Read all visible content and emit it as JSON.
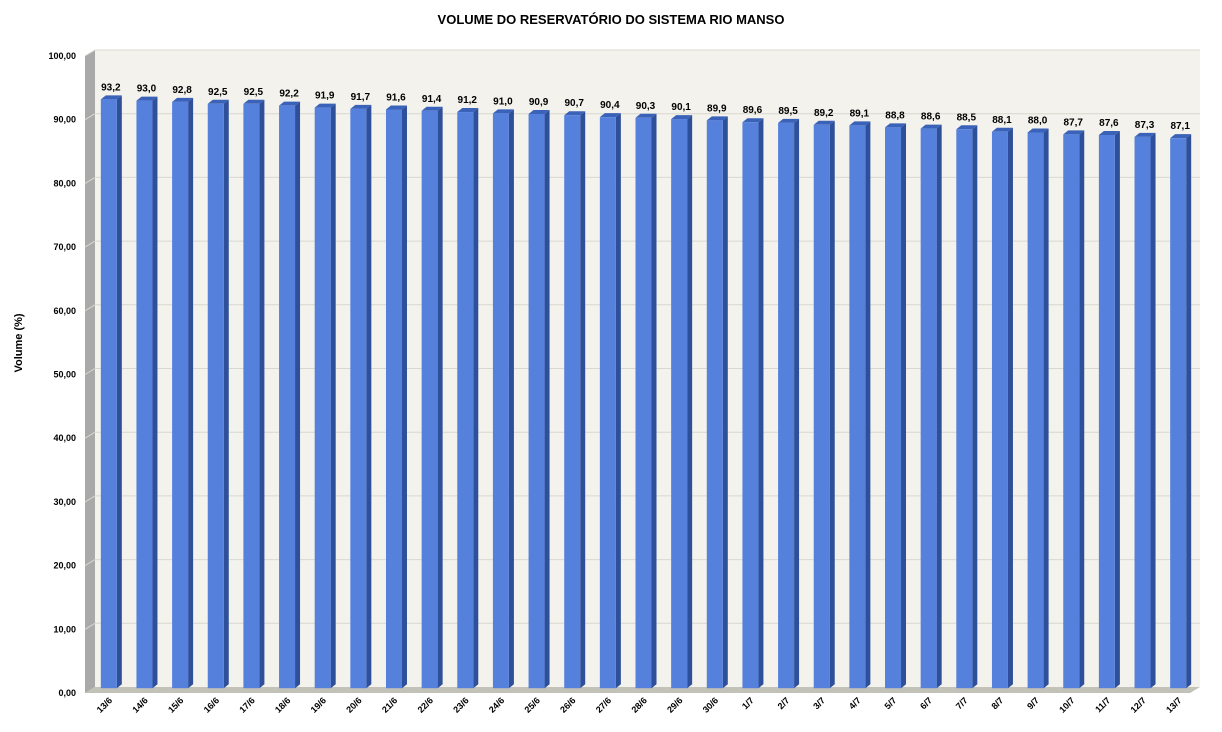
{
  "chart_data": {
    "type": "bar",
    "title": "VOLUME DO RESERVATÓRIO DO SISTEMA RIO MANSO",
    "xlabel": "",
    "ylabel": "Volume (%)",
    "ylim": [
      0,
      100
    ],
    "yticks": [
      0,
      10,
      20,
      30,
      40,
      50,
      60,
      70,
      80,
      90,
      100
    ],
    "ytick_labels": [
      "0,00",
      "10,00",
      "20,00",
      "30,00",
      "40,00",
      "50,00",
      "60,00",
      "70,00",
      "80,00",
      "90,00",
      "100,00"
    ],
    "grid": true,
    "legend": "none",
    "categories": [
      "13/6",
      "14/6",
      "15/6",
      "16/6",
      "17/6",
      "18/6",
      "19/6",
      "20/6",
      "21/6",
      "22/6",
      "23/6",
      "24/6",
      "25/6",
      "26/6",
      "27/6",
      "28/6",
      "29/6",
      "30/6",
      "1/7",
      "2/7",
      "3/7",
      "4/7",
      "5/7",
      "6/7",
      "7/7",
      "8/7",
      "9/7",
      "10/7",
      "11/7",
      "12/7",
      "13/7"
    ],
    "values": [
      93.2,
      93.0,
      92.8,
      92.5,
      92.5,
      92.2,
      91.9,
      91.7,
      91.6,
      91.4,
      91.2,
      91.0,
      90.9,
      90.7,
      90.4,
      90.3,
      90.1,
      89.9,
      89.6,
      89.5,
      89.2,
      89.1,
      88.8,
      88.6,
      88.5,
      88.1,
      88.0,
      87.7,
      87.6,
      87.3,
      87.1
    ],
    "value_labels": [
      "93,2",
      "93,0",
      "92,8",
      "92,5",
      "92,5",
      "92,2",
      "91,9",
      "91,7",
      "91,6",
      "91,4",
      "91,2",
      "91,0",
      "90,9",
      "90,7",
      "90,4",
      "90,3",
      "90,1",
      "89,9",
      "89,6",
      "89,5",
      "89,2",
      "89,1",
      "88,8",
      "88,6",
      "88,5",
      "88,1",
      "88,0",
      "87,7",
      "87,6",
      "87,3",
      "87,1"
    ],
    "colors": {
      "bar_front": "#5580dc",
      "bar_side": "#2e4f99",
      "bar_top": "#3a62b8",
      "plot_bg": "#f3f2ec",
      "wall_side": "#a9a9a9",
      "floor": "#c2c2b8",
      "gridline": "#d8d8d0"
    }
  }
}
